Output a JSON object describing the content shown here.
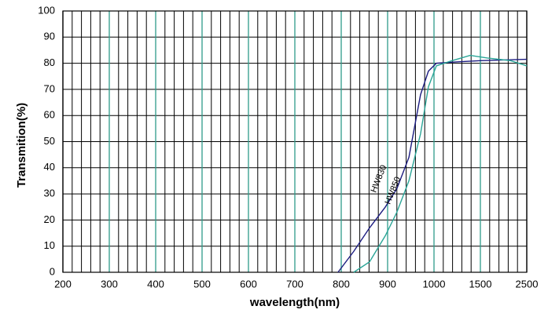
{
  "chart_data": {
    "type": "line",
    "xlabel": "wavelength(nm)",
    "ylabel": "Transmition(%)",
    "xlim": [
      200,
      2500
    ],
    "xticks": [
      200,
      300,
      400,
      500,
      600,
      700,
      800,
      900,
      1000,
      1500,
      2500
    ],
    "xminor": 5,
    "ylim": [
      0,
      100
    ],
    "yticks": [
      0,
      10,
      20,
      30,
      40,
      50,
      60,
      70,
      80,
      90,
      100
    ],
    "grid": true,
    "major_grid_color": "#2e9b8a",
    "series": [
      {
        "name": "HW830",
        "color": "#1c1c80",
        "x": [
          793,
          827,
          861,
          895,
          920,
          946,
          971,
          988,
          1025,
          1237,
          1500,
          2500
        ],
        "values": [
          0,
          8,
          17,
          25,
          32,
          44,
          68,
          77,
          80,
          80.5,
          81,
          81.5
        ]
      },
      {
        "name": "HW850",
        "color": "#2aa597",
        "x": [
          827,
          861,
          895,
          920,
          946,
          971,
          988,
          1025,
          1195,
          1390,
          1650,
          2150,
          2500
        ],
        "values": [
          0,
          4,
          14,
          23,
          35,
          53,
          71,
          79,
          81,
          83,
          82,
          81,
          79
        ]
      }
    ]
  }
}
